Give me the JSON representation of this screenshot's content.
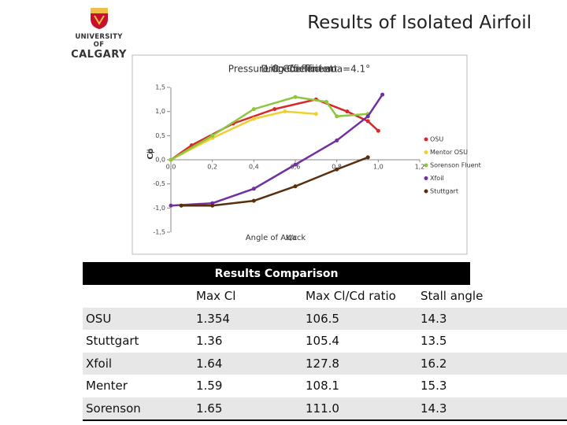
{
  "header": {
    "logo": {
      "line1": "UNIVERSITY OF",
      "line2": "CALGARY"
    },
    "title": "Results of Isolated Airfoil"
  },
  "chart_data": {
    "type": "line",
    "titles": [
      "Pressure Coefficient aoa=4.1°",
      "Lift Coefficient",
      "Drag Coefficient"
    ],
    "y_labels": [
      "Cp",
      "Cd",
      "Cl"
    ],
    "x_labels": [
      "Angle of Attack",
      "x/c"
    ],
    "xlim": [
      0,
      1.2
    ],
    "xticks": [
      {
        "value": 0,
        "label": "0,0"
      },
      {
        "value": 0.2,
        "label": "0,2"
      },
      {
        "value": 0.4,
        "label": "0,4"
      },
      {
        "value": 0.6,
        "label": "0,6"
      },
      {
        "value": 0.8,
        "label": "0,8"
      },
      {
        "value": 1,
        "label": "1,0"
      },
      {
        "value": 1.2,
        "label": "1,2"
      }
    ],
    "ylim": [
      -1.5,
      1.5
    ],
    "yticks": [
      {
        "value": -1.5,
        "label": "-1,5"
      },
      {
        "value": -1,
        "label": "-1,0"
      },
      {
        "value": -0.5,
        "label": "-0,5"
      },
      {
        "value": 0,
        "label": "0,0"
      },
      {
        "value": 0.5,
        "label": "0,5"
      },
      {
        "value": 1,
        "label": "1,0"
      },
      {
        "value": 1.5,
        "label": "1,5"
      }
    ],
    "series": [
      {
        "name": "OSU",
        "color": "#d9282a",
        "x": [
          0,
          0.1,
          0.3,
          0.5,
          0.7,
          0.85,
          0.95,
          1.0
        ],
        "values": [
          0.0,
          0.3,
          0.75,
          1.05,
          1.25,
          1.0,
          0.8,
          0.6
        ]
      },
      {
        "name": "Mentor OSU",
        "color": "#f0d030",
        "x": [
          0,
          0.2,
          0.4,
          0.55,
          0.7
        ],
        "values": [
          0.0,
          0.45,
          0.85,
          1.0,
          0.95
        ]
      },
      {
        "name": "Sorenson Fluent",
        "color": "#8dc63f",
        "x": [
          0,
          0.2,
          0.4,
          0.6,
          0.75,
          0.8,
          0.95
        ],
        "values": [
          0.0,
          0.5,
          1.05,
          1.3,
          1.2,
          0.9,
          0.95
        ]
      },
      {
        "name": "Xfoil",
        "color": "#7030a0",
        "x": [
          0,
          0.2,
          0.4,
          0.6,
          0.8,
          0.95,
          1.02
        ],
        "values": [
          -0.95,
          -0.9,
          -0.6,
          -0.1,
          0.4,
          0.9,
          1.35
        ]
      },
      {
        "name": "Stuttgart",
        "color": "#5a2d0c",
        "x": [
          0.05,
          0.2,
          0.4,
          0.6,
          0.8,
          0.95
        ],
        "values": [
          -0.95,
          -0.95,
          -0.85,
          -0.55,
          -0.2,
          0.05
        ]
      }
    ]
  },
  "table": {
    "caption": "Results Comparison",
    "columns": [
      "Max Cl",
      "Max Cl/Cd ratio",
      "Stall angle"
    ],
    "rows": [
      [
        "OSU",
        "1.354",
        "106.5",
        "14.3"
      ],
      [
        "Stuttgart",
        "1.36",
        "105.4",
        "13.5"
      ],
      [
        "Xfoil",
        "1.64",
        "127.8",
        "16.2"
      ],
      [
        "Menter",
        "1.59",
        "108.1",
        "15.3"
      ],
      [
        "Sorenson",
        "1.65",
        "111.0",
        "14.3"
      ]
    ]
  }
}
